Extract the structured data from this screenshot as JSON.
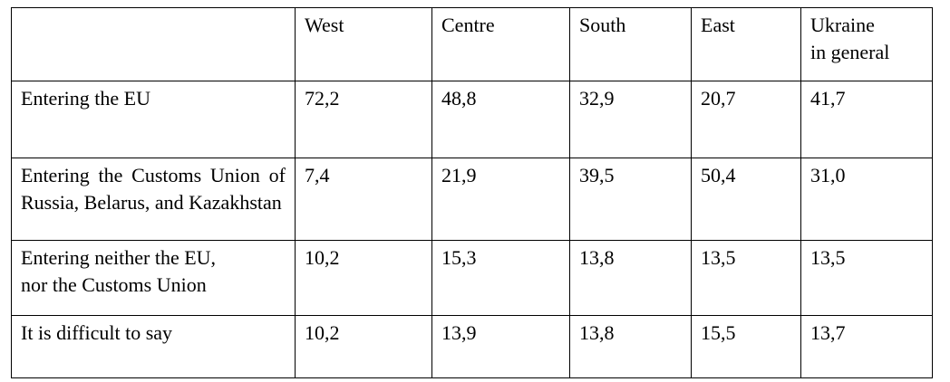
{
  "table": {
    "header": [
      "",
      "West",
      "Centre",
      "South",
      "East",
      "Ukraine\nin general"
    ],
    "rows": [
      [
        "Entering the EU",
        "72,2",
        "48,8",
        "32,9",
        "20,7",
        "41,7"
      ],
      [
        "Entering the Customs Union of Russia, Belarus, and Kazakhstan",
        "7,4",
        "21,9",
        "39,5",
        "50,4",
        "31,0"
      ],
      [
        "Entering neither the EU,\nnor the Customs Union",
        "10,2",
        "15,3",
        "13,8",
        "13,5",
        "13,5"
      ],
      [
        "It is difficult to say",
        "10,2",
        "13,9",
        "13,8",
        "15,5",
        "13,7"
      ]
    ]
  }
}
